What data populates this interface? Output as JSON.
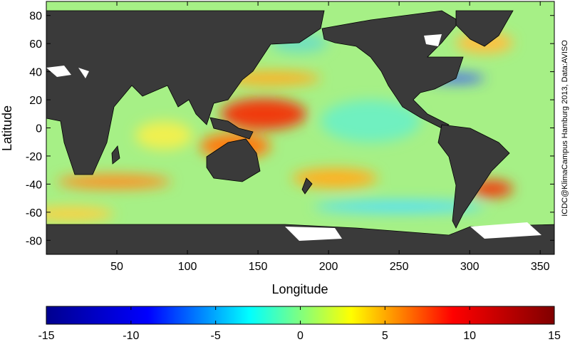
{
  "chart_data": {
    "type": "map",
    "xlabel": "Longitude",
    "ylabel": "Latitude",
    "xlim": [
      0,
      360
    ],
    "ylim": [
      -90,
      90
    ],
    "xticks": [
      50,
      100,
      150,
      200,
      250,
      300,
      350
    ],
    "yticks": [
      -80,
      -60,
      -40,
      -20,
      0,
      20,
      40,
      60,
      80
    ],
    "colorbar": {
      "lim": [
        -15,
        15
      ],
      "ticks": [
        -15,
        -10,
        -5,
        0,
        5,
        10,
        15
      ],
      "colors": [
        "#00008f",
        "#0000ff",
        "#00ffff",
        "#ffff00",
        "#ff0000",
        "#800000"
      ]
    },
    "credit": "ICDC@KlimaCampus Hamburg 2013, Data:AVISO"
  }
}
